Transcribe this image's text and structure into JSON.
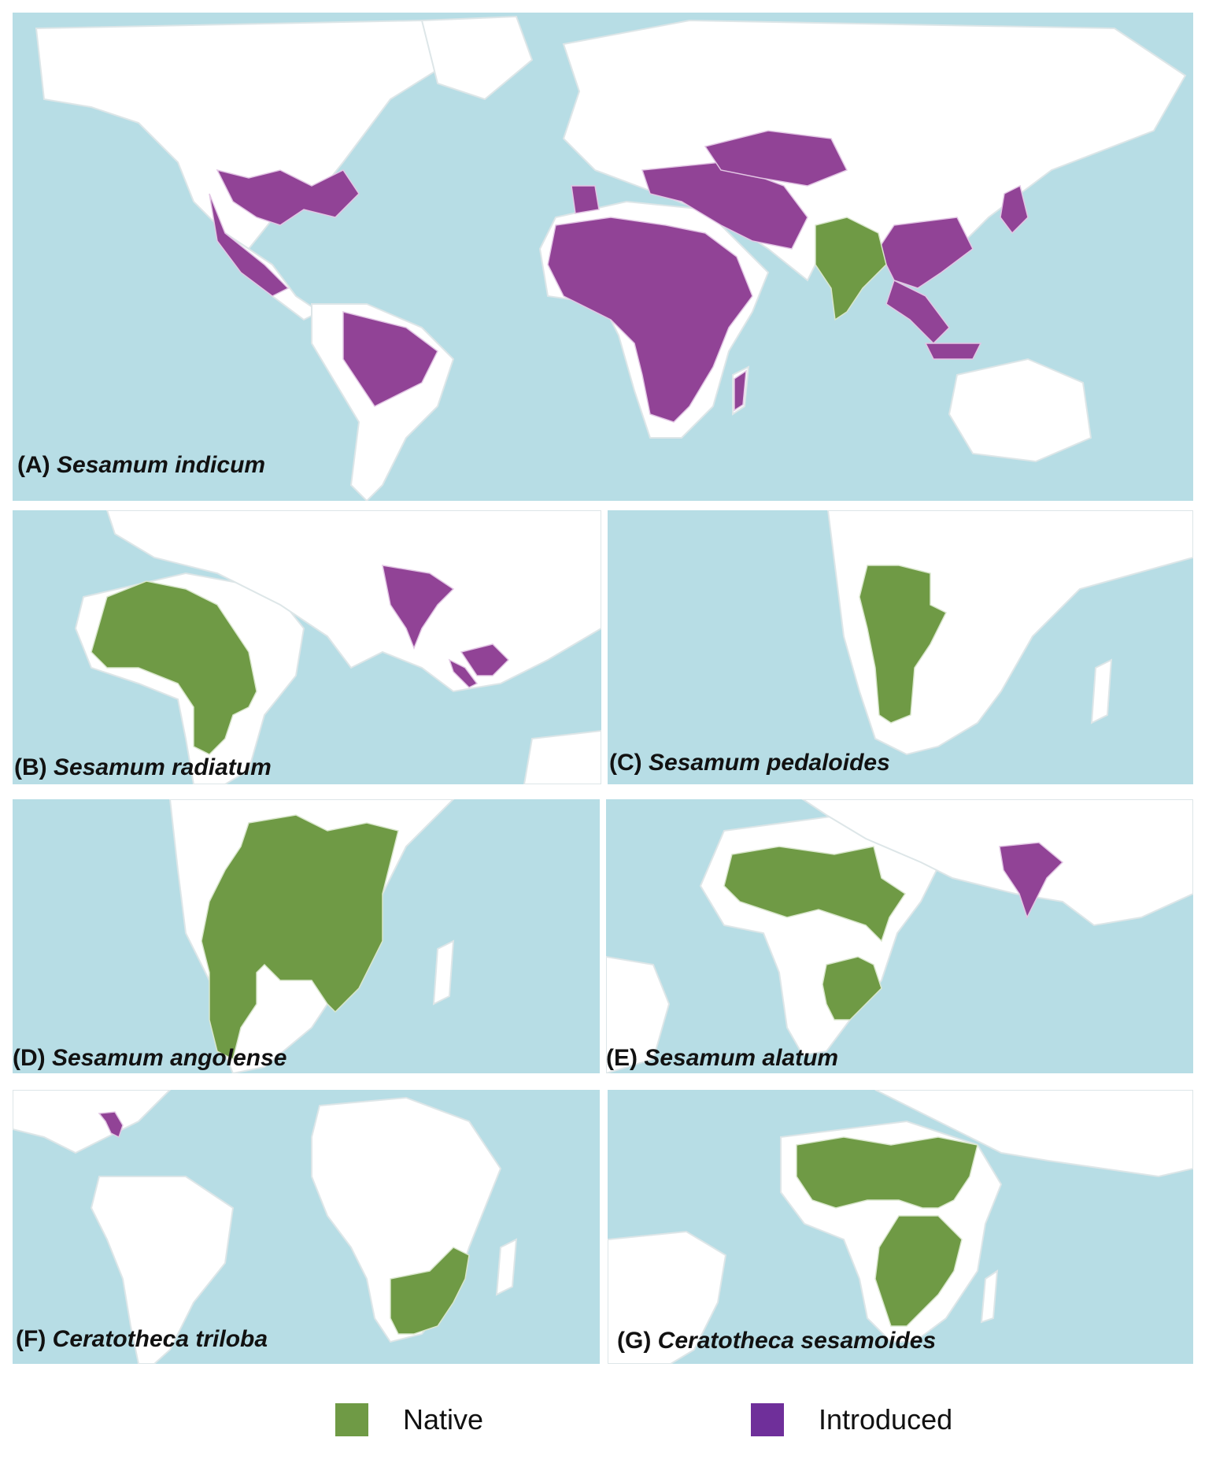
{
  "panels": [
    {
      "id": "A",
      "letter": "(A)",
      "species": "Sesamum indicum"
    },
    {
      "id": "B",
      "letter": "(B)",
      "species": "Sesamum radiatum"
    },
    {
      "id": "C",
      "letter": "(C)",
      "species": "Sesamum pedaloides"
    },
    {
      "id": "D",
      "letter": "(D)",
      "species": "Sesamum angolense"
    },
    {
      "id": "E",
      "letter": "(E)",
      "species": "Sesamum alatum"
    },
    {
      "id": "F",
      "letter": "(F)",
      "species": "Ceratotheca triloba"
    },
    {
      "id": "G",
      "letter": "(G)",
      "species": "Ceratotheca sesamoides"
    }
  ],
  "legend": {
    "native": {
      "label": "Native",
      "color": "#6f9a45"
    },
    "introduced": {
      "label": "Introduced",
      "color": "#914396"
    }
  },
  "colors": {
    "ocean": "#b7dde5",
    "land": "#ffffff"
  }
}
